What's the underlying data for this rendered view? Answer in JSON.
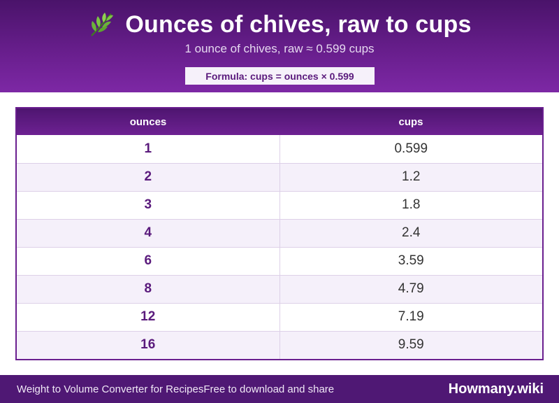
{
  "header": {
    "icon": "herb-icon",
    "title": "Ounces of chives, raw to cups",
    "subtitle": "1 ounce of chives, raw ≈ 0.599 cups",
    "formula": "Formula: cups = ounces × 0.599"
  },
  "table": {
    "columns": [
      "ounces",
      "cups"
    ],
    "rows": [
      {
        "ounces": "1",
        "cups": "0.599"
      },
      {
        "ounces": "2",
        "cups": "1.2"
      },
      {
        "ounces": "3",
        "cups": "1.8"
      },
      {
        "ounces": "4",
        "cups": "2.4"
      },
      {
        "ounces": "6",
        "cups": "3.59"
      },
      {
        "ounces": "8",
        "cups": "4.79"
      },
      {
        "ounces": "12",
        "cups": "7.19"
      },
      {
        "ounces": "16",
        "cups": "9.59"
      }
    ]
  },
  "footer": {
    "app_name": "Weight to Volume Converter for Recipes",
    "tagline": "Free to download and share",
    "brand": "Howmany.wiki"
  },
  "colors": {
    "accent": "#6a1f8f",
    "header_dark": "#4a136a",
    "row_alt": "#f5f0fa",
    "ounce_text": "#5a1a7c"
  }
}
